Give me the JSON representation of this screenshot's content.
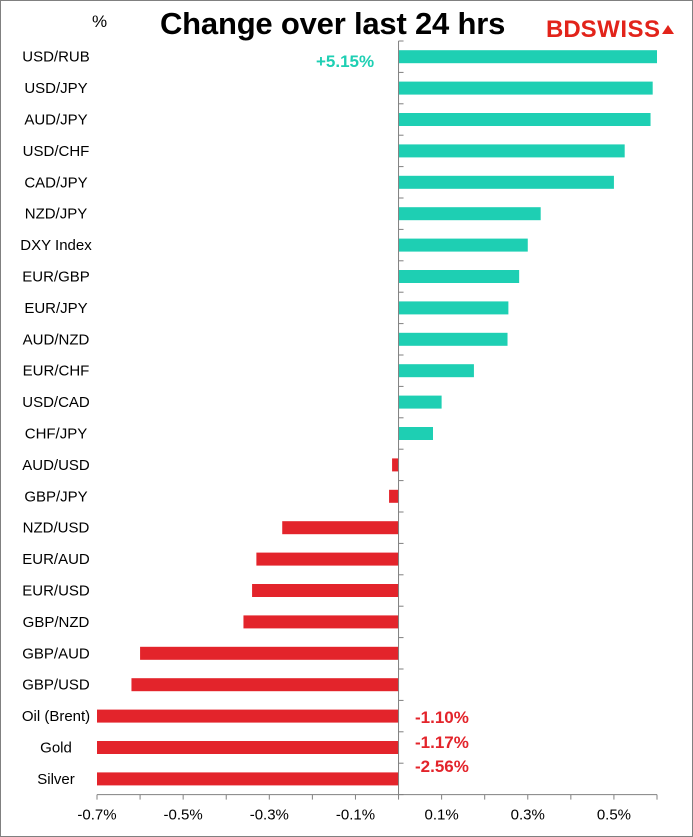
{
  "header": {
    "title": "Change over last 24 hrs",
    "unit": "%",
    "logo": {
      "part1": "BD",
      "part2": "SWISS"
    }
  },
  "annotations": {
    "top": "+5.15%",
    "oil": "-1.10%",
    "gold": "-1.17%",
    "silver": "-2.56%"
  },
  "colors": {
    "positive": "#1ecfb3",
    "negative": "#e3242b",
    "axis": "#808080"
  },
  "chart_data": {
    "type": "bar",
    "orientation": "horizontal",
    "title": "Change over last 24 hrs",
    "ylabel": "%",
    "categories": [
      "USD/RUB",
      "USD/JPY",
      "AUD/JPY",
      "USD/CHF",
      "CAD/JPY",
      "NZD/JPY",
      "DXY Index",
      "EUR/GBP",
      "EUR/JPY",
      "AUD/NZD",
      "EUR/CHF",
      "USD/CAD",
      "CHF/JPY",
      "AUD/USD",
      "GBP/JPY",
      "NZD/USD",
      "EUR/AUD",
      "EUR/USD",
      "GBP/NZD",
      "GBP/AUD",
      "GBP/USD",
      "Oil (Brent)",
      "Gold",
      "Silver"
    ],
    "values": [
      0.6,
      0.59,
      0.585,
      0.525,
      0.5,
      0.33,
      0.3,
      0.28,
      0.255,
      0.253,
      0.175,
      0.1,
      0.08,
      -0.015,
      -0.022,
      -0.27,
      -0.33,
      -0.34,
      -0.36,
      -0.6,
      -0.62,
      -0.7,
      -0.7,
      -0.7
    ],
    "xlim": [
      -0.7,
      0.6
    ],
    "xticks": [
      -0.7,
      -0.5,
      -0.3,
      -0.1,
      0.1,
      0.3,
      0.5
    ],
    "xtick_labels": [
      "-0.7%",
      "-0.5%",
      "-0.3%",
      "-0.1%",
      "0.1%",
      "0.3%",
      "0.5%"
    ],
    "grid": false,
    "legend": "none",
    "value_labels": {
      "USD/RUB": "+5.15%",
      "Oil (Brent)": "-1.10%",
      "Gold": "-1.17%",
      "Silver": "-2.56%"
    }
  }
}
